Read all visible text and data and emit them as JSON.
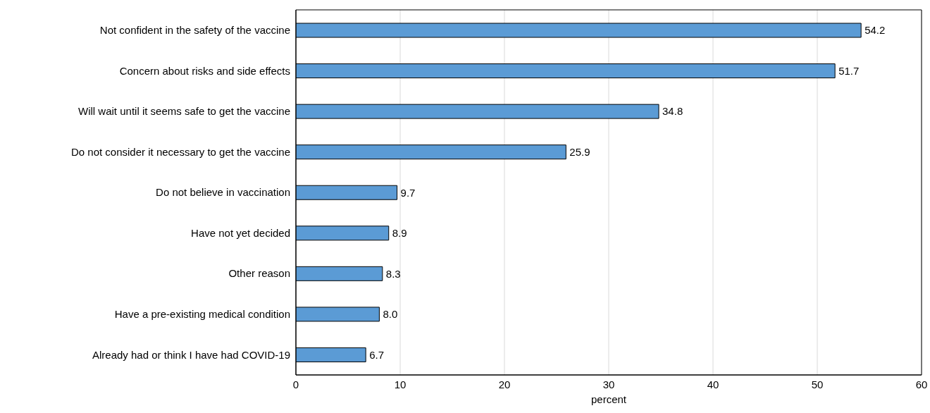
{
  "chart_data": {
    "type": "bar",
    "orientation": "horizontal",
    "categories": [
      "Not confident in the safety of the vaccine",
      "Concern about risks and side effects",
      "Will wait until it seems safe to get the vaccine",
      "Do not consider it necessary to get the vaccine",
      "Do not believe in vaccination",
      "Have not yet decided",
      "Other reason",
      "Have a pre-existing medical condition",
      "Already had or think I have had COVID-19"
    ],
    "values": [
      54.2,
      51.7,
      34.8,
      25.9,
      9.7,
      8.9,
      8.3,
      8.0,
      6.7
    ],
    "value_labels": [
      "54.2",
      "51.7",
      "34.8",
      "25.9",
      "9.7",
      "8.9",
      "8.3",
      "8.0",
      "6.7"
    ],
    "color": "#5b9bd5",
    "xlim": [
      0,
      60
    ],
    "xticks": [
      0,
      10,
      20,
      30,
      40,
      50,
      60
    ],
    "xlabel": "percent",
    "grid": "x"
  }
}
